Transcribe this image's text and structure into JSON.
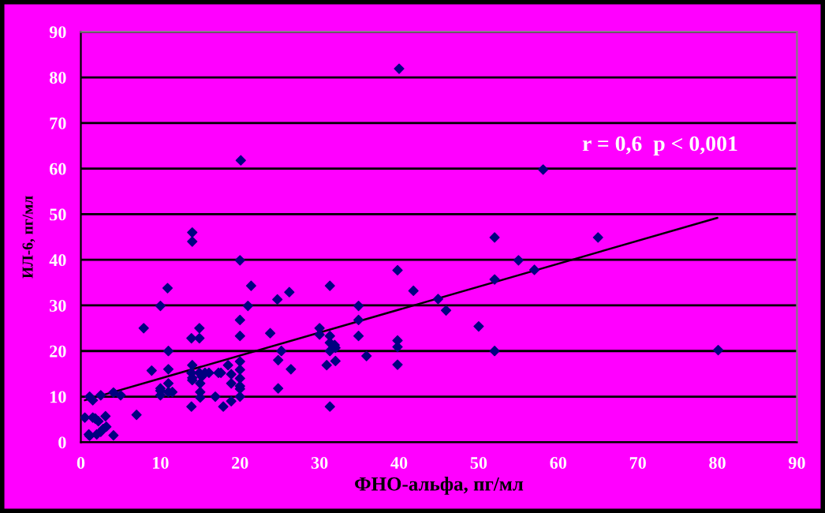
{
  "chart_data": {
    "type": "scatter",
    "xlabel": "ФНО-альфа, пг/мл",
    "ylabel": "ИЛ-6, пг/мл",
    "annotations": [
      "r = 0,6  p < 0,001"
    ],
    "xlim": [
      0,
      90
    ],
    "ylim": [
      0,
      90
    ],
    "xticks": [
      0,
      10,
      20,
      30,
      40,
      50,
      60,
      70,
      80,
      90
    ],
    "yticks": [
      0,
      10,
      20,
      30,
      40,
      50,
      60,
      70,
      80,
      90
    ],
    "grid": "y",
    "marker": "diamond",
    "legend": false,
    "series": [
      {
        "color": "#000080",
        "x": [
          0.5,
          1,
          1.1,
          1.1,
          1.5,
          1.5,
          1.8,
          2.2,
          2,
          2.5,
          2.5,
          2.8,
          3.1,
          3.2,
          4.1,
          4.1,
          5,
          7,
          7.9,
          8.9,
          10,
          10,
          10,
          10,
          10.9,
          11,
          11,
          11,
          11,
          11.5,
          14,
          14,
          13.9,
          14,
          14,
          14,
          13.9,
          13.9,
          14.9,
          14.9,
          14.9,
          15,
          15,
          15,
          15.2,
          15.6,
          16.1,
          16.9,
          17.3,
          17.6,
          17.9,
          18.5,
          18.9,
          18.9,
          18.9,
          20,
          20,
          20,
          20,
          20,
          20,
          20,
          20,
          20,
          20.1,
          21,
          21.4,
          23.8,
          24.7,
          24.8,
          24.8,
          25.2,
          26.2,
          26.4,
          30,
          30,
          30.9,
          31.3,
          31.3,
          31.3,
          31.3,
          31.3,
          31.9,
          32,
          32,
          34.9,
          34.9,
          34.9,
          35.9,
          39.8,
          39.8,
          39.8,
          39.8,
          40,
          41.8,
          44.9,
          45.9,
          50,
          52,
          52,
          52,
          55,
          57,
          58.1,
          65,
          80.1
        ],
        "values": [
          5.4,
          1.7,
          1.4,
          10,
          5.4,
          9.2,
          5.2,
          4.6,
          1.7,
          2.3,
          10.3,
          2.9,
          5.7,
          3.4,
          10.9,
          1.5,
          10.3,
          6,
          25,
          15.7,
          10.3,
          29.9,
          11.8,
          11.3,
          33.8,
          20,
          16,
          12.9,
          11,
          11,
          46,
          44,
          22.8,
          16.9,
          14.1,
          13.6,
          7.8,
          15.2,
          22.8,
          25,
          15.2,
          12.9,
          11,
          9.8,
          14.4,
          15.2,
          15.2,
          10,
          15.2,
          15.2,
          7.8,
          16.9,
          9,
          14.9,
          12.9,
          39.9,
          26.8,
          23.3,
          17.7,
          15.9,
          14,
          12.3,
          11.7,
          10,
          61.8,
          29.9,
          34.3,
          23.9,
          31.3,
          18,
          11.8,
          20,
          32.9,
          16,
          25,
          23.6,
          16.9,
          34.3,
          23.3,
          21.8,
          20,
          7.8,
          21.3,
          20.7,
          17.8,
          29.9,
          26.8,
          23.3,
          18.9,
          37.7,
          22.3,
          20.9,
          17,
          81.9,
          33.2,
          31.4,
          28.9,
          25.4,
          44.9,
          35.7,
          20,
          39.9,
          37.8,
          59.8,
          44.9,
          20.2
        ]
      },
      {
        "type": "line",
        "color": "#000000",
        "x": [
          0.5,
          80
        ],
        "values": [
          9.2,
          49.2
        ],
        "marker": "none"
      }
    ]
  }
}
